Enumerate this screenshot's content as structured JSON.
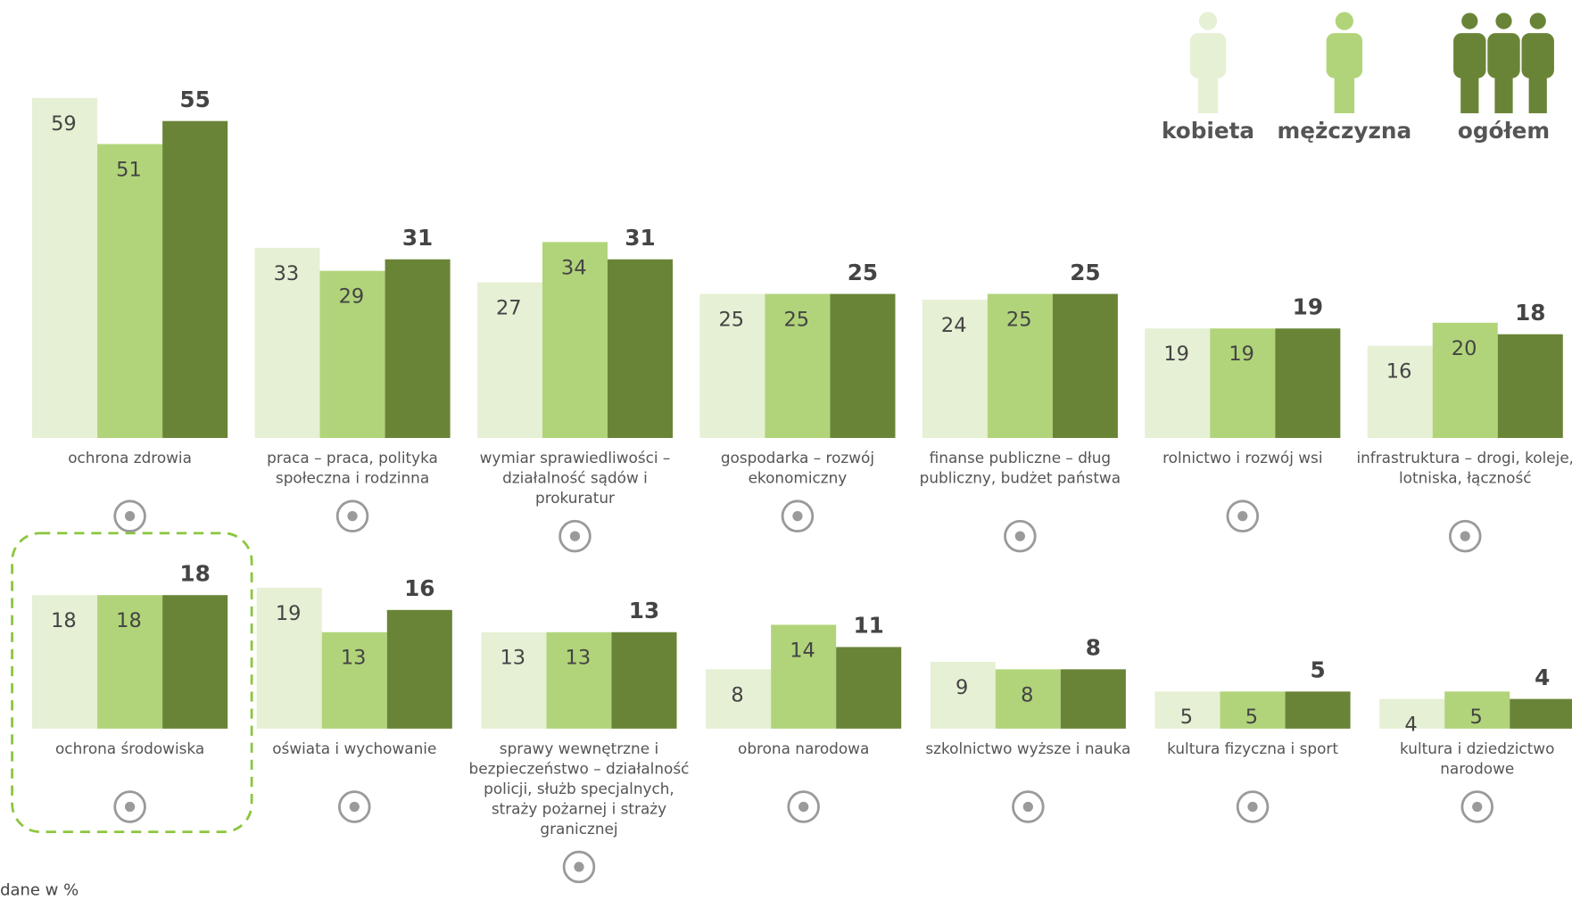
{
  "note": "dane w %",
  "chart_data": [
    {
      "type": "bar",
      "categories": [
        "ochrona zdrowia",
        "praca – praca, polityka społeczna i rodzinna",
        "wymiar sprawiedliwości – działalność sądów i prokuratur",
        "gospodarka – rozwój ekonomiczny",
        "finanse publiczne – dług publiczny, budżet państwa",
        "rolnictwo i rozwój wsi",
        "infrastruktura – drogi, koleje, lotniska, łączność"
      ],
      "series": [
        {
          "name": "kobieta",
          "color": "#e6f0d4",
          "values": [
            59,
            33,
            27,
            25,
            24,
            19,
            16
          ]
        },
        {
          "name": "mężczyzna",
          "color": "#b1d47a",
          "values": [
            51,
            29,
            34,
            25,
            25,
            19,
            20
          ]
        },
        {
          "name": "ogółem",
          "color": "#6a8437",
          "values": [
            55,
            31,
            31,
            25,
            25,
            19,
            18
          ]
        }
      ],
      "ylim": [
        0,
        64
      ]
    },
    {
      "type": "bar",
      "categories": [
        "ochrona środowiska",
        "oświata i wychowanie",
        "sprawy wewnętrzne i bezpieczeństwo – działalność policji, służb specjalnych, straży pożarnej i straży granicznej",
        "obrona narodowa",
        "szkolnictwo wyższe i nauka",
        "kultura fizyczna i sport",
        "kultura i dziedzictwo narodowe"
      ],
      "series": [
        {
          "name": "kobieta",
          "color": "#e6f0d4",
          "values": [
            18,
            19,
            13,
            8,
            9,
            5,
            4
          ]
        },
        {
          "name": "mężczyzna",
          "color": "#b1d47a",
          "values": [
            18,
            13,
            13,
            14,
            8,
            5,
            5
          ]
        },
        {
          "name": "ogółem",
          "color": "#6a8437",
          "values": [
            18,
            16,
            13,
            11,
            8,
            5,
            4
          ]
        }
      ],
      "ylim": [
        0,
        25
      ]
    }
  ]
}
